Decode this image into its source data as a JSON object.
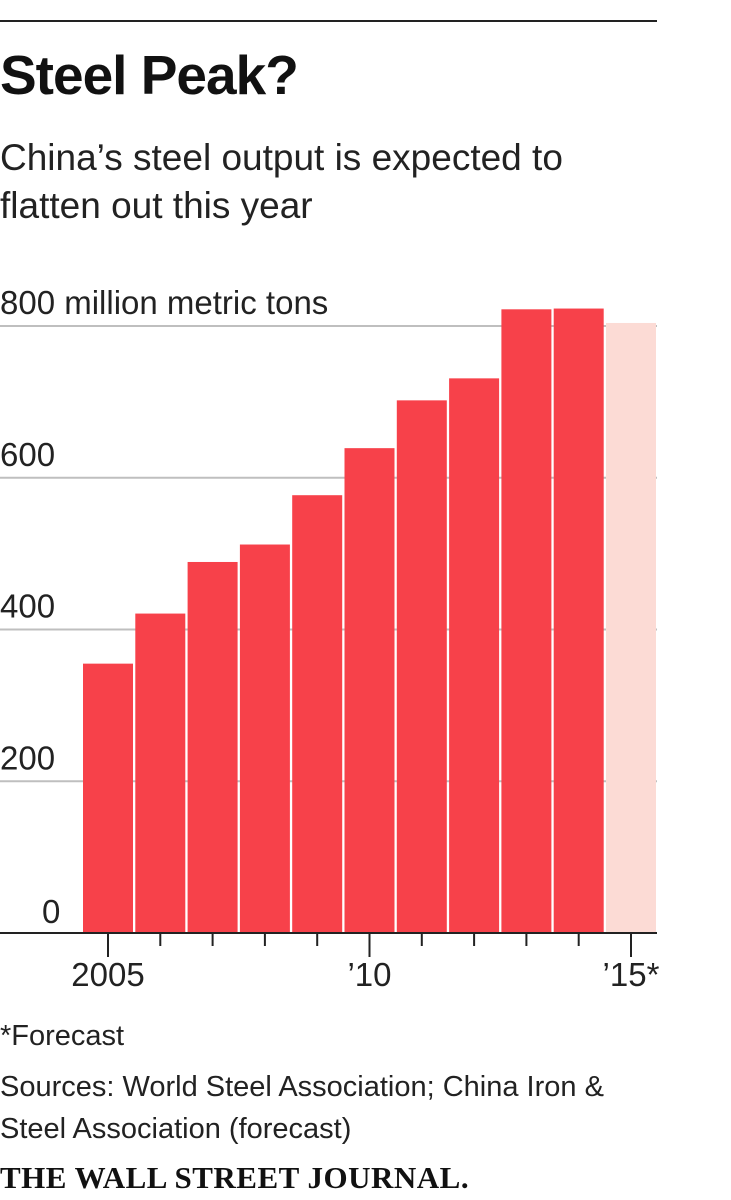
{
  "header": {
    "title": "Steel Peak?",
    "subtitle": "China’s steel output is expected to flatten out this year"
  },
  "chart_data": {
    "type": "bar",
    "title": "Steel Peak?",
    "subtitle": "China’s steel output is expected to flatten out this year",
    "ylabel": "800 million metric tons",
    "xlabel": "",
    "ylim": [
      0,
      800
    ],
    "yticks": [
      0,
      200,
      400,
      600,
      800
    ],
    "ytick_labels": [
      "0",
      "200",
      "400",
      "600",
      "800 million metric tons"
    ],
    "categories": [
      "2005",
      "2006",
      "2007",
      "2008",
      "2009",
      "2010",
      "2011",
      "2012",
      "2013",
      "2014",
      "2015*"
    ],
    "values": [
      355,
      421,
      489,
      512,
      577,
      639,
      702,
      731,
      822,
      823,
      804
    ],
    "forecast": [
      false,
      false,
      false,
      false,
      false,
      false,
      false,
      false,
      false,
      false,
      true
    ],
    "xtick_labels": [
      {
        "index": 0,
        "label": "2005"
      },
      {
        "index": 5,
        "label": "’10"
      },
      {
        "index": 10,
        "label": "’15*"
      }
    ],
    "colors": {
      "actual": "#f7414a",
      "forecast": "#fcdbd5",
      "gridline": "#bfbfbf",
      "axis": "#222222"
    },
    "grid": true
  },
  "footer": {
    "footnote": "*Forecast",
    "sources": "Sources: World Steel Association; China Iron & Steel Association (forecast)",
    "brand": "THE WALL STREET JOURNAL."
  }
}
